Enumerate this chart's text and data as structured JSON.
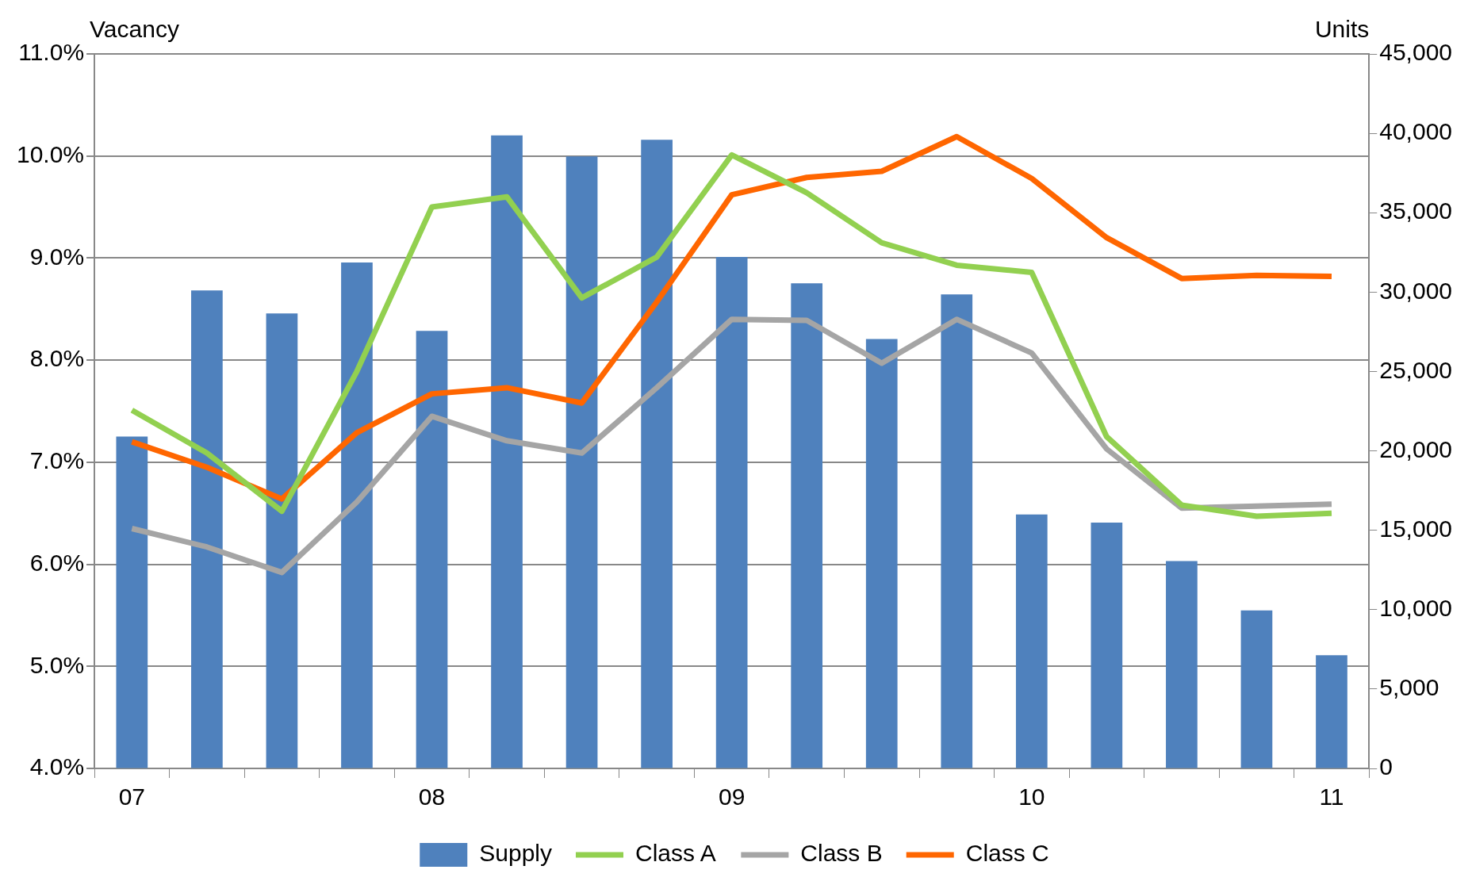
{
  "chart_data": {
    "type": "bar",
    "ylabel": "Vacancy",
    "y2label": "Units",
    "categories": [
      "07",
      null,
      null,
      null,
      "08",
      null,
      null,
      null,
      "09",
      null,
      null,
      null,
      "10",
      null,
      null,
      null,
      "11"
    ],
    "series": [
      {
        "name": "Supply",
        "axis": "y2",
        "color": "#4f81bd",
        "values": [
          20900,
          30100,
          28650,
          31870,
          27560,
          39870,
          38550,
          39590,
          32220,
          30550,
          27040,
          29860,
          15990,
          15480,
          13060,
          9950,
          7130
        ]
      },
      {
        "name": "Class A",
        "type": "line",
        "axis": "y",
        "color": "#92d050",
        "values": [
          7.51,
          7.09,
          6.52,
          7.89,
          9.5,
          9.6,
          8.61,
          9.01,
          10.01,
          9.64,
          9.15,
          8.93,
          8.86,
          7.25,
          6.58,
          6.47,
          6.5
        ]
      },
      {
        "name": "Class B",
        "type": "line",
        "axis": "y",
        "color": "#a5a5a5",
        "values": [
          6.35,
          6.17,
          5.92,
          6.61,
          7.45,
          7.21,
          7.09,
          7.73,
          8.4,
          8.39,
          7.97,
          8.4,
          8.07,
          7.13,
          6.55,
          6.57,
          6.59
        ]
      },
      {
        "name": "Class C",
        "type": "line",
        "axis": "y",
        "color": "#ff6600",
        "values": [
          7.2,
          6.95,
          6.64,
          7.29,
          7.67,
          7.73,
          7.58,
          8.57,
          9.62,
          9.79,
          9.85,
          10.19,
          9.78,
          9.2,
          8.8,
          8.83,
          8.82
        ]
      }
    ],
    "ylim": [
      4,
      11
    ],
    "yticks": [
      {
        "value": 4,
        "label": "4.0%"
      },
      {
        "value": 5,
        "label": "5.0%"
      },
      {
        "value": 6,
        "label": "6.0%"
      },
      {
        "value": 7,
        "label": "7.0%"
      },
      {
        "value": 8,
        "label": "8.0%"
      },
      {
        "value": 9,
        "label": "9.0%"
      },
      {
        "value": 10,
        "label": "10.0%"
      },
      {
        "value": 11,
        "label": "11.0%"
      }
    ],
    "y2lim": [
      0,
      45000
    ],
    "y2ticks": [
      0,
      {
        "value": 5000,
        "label": "5,000"
      },
      {
        "value": 10000,
        "label": "10,000"
      },
      {
        "value": 15000,
        "label": "15,000"
      },
      {
        "value": 20000,
        "label": "20,000"
      },
      {
        "value": 25000,
        "label": "25,000"
      },
      {
        "value": 30000,
        "label": "30,000"
      },
      {
        "value": 35000,
        "label": "35,000"
      },
      {
        "value": 40000,
        "label": "40,000"
      },
      {
        "value": 45000,
        "label": "45,000"
      }
    ],
    "grid": "y",
    "legend": "bottom",
    "marker": "none",
    "line_style": "solid"
  }
}
